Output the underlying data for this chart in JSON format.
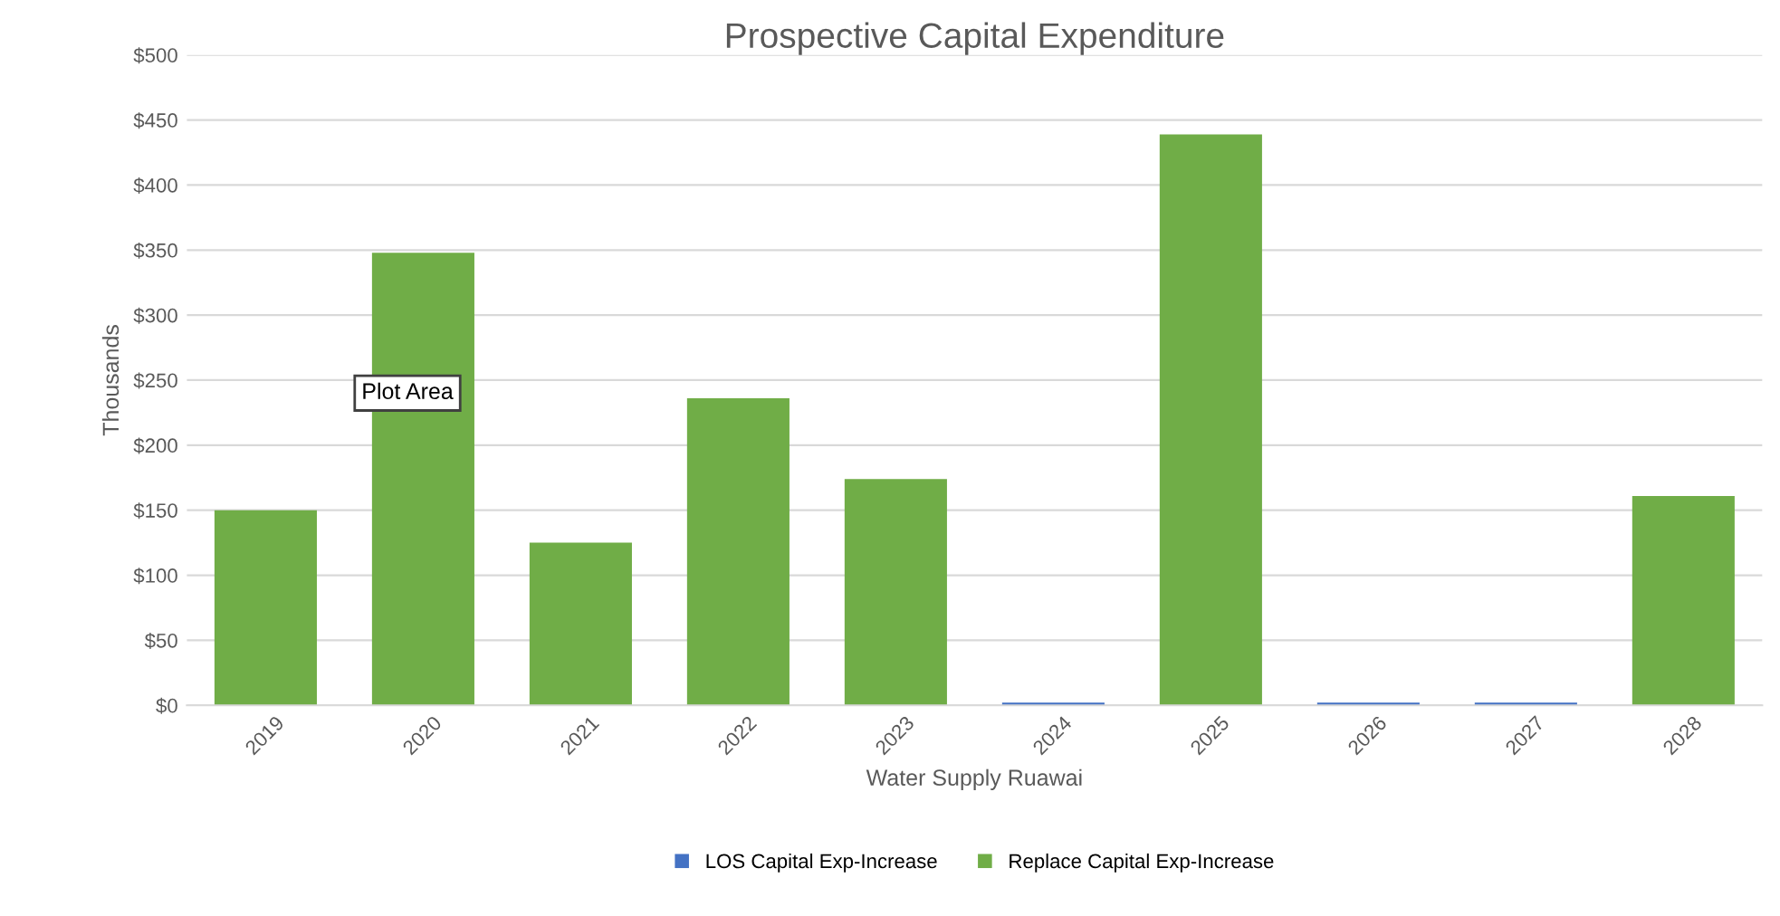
{
  "chart_data": {
    "type": "bar",
    "title": "Prospective Capital Expenditure",
    "xlabel": "Water Supply Ruawai",
    "ylabel": "Thousands",
    "categories": [
      "2019",
      "2020",
      "2021",
      "2022",
      "2023",
      "2024",
      "2025",
      "2026",
      "2027",
      "2028"
    ],
    "stacked": true,
    "series": [
      {
        "name": "LOS Capital Exp-Increase",
        "color": "#4472c4",
        "values": [
          0,
          0,
          0,
          0,
          0,
          2,
          0,
          2,
          2,
          0
        ]
      },
      {
        "name": "Replace Capital Exp-Increase",
        "color": "#70ad47",
        "values": [
          150,
          348,
          125,
          236,
          174,
          0,
          439,
          0,
          0,
          161
        ]
      }
    ],
    "ylim": [
      0,
      500
    ],
    "yticks": [
      {
        "value": 0,
        "label": "$0"
      },
      {
        "value": 50,
        "label": "$50"
      },
      {
        "value": 100,
        "label": "$100"
      },
      {
        "value": 150,
        "label": "$150"
      },
      {
        "value": 200,
        "label": "$200"
      },
      {
        "value": 250,
        "label": "$250"
      },
      {
        "value": 300,
        "label": "$300"
      },
      {
        "value": 350,
        "label": "$350"
      },
      {
        "value": 400,
        "label": "$400"
      },
      {
        "value": 450,
        "label": "$450"
      },
      {
        "value": 500,
        "label": "$500"
      }
    ],
    "grid": "y",
    "legend": "bottom",
    "annotations": [
      "Plot Area"
    ]
  }
}
